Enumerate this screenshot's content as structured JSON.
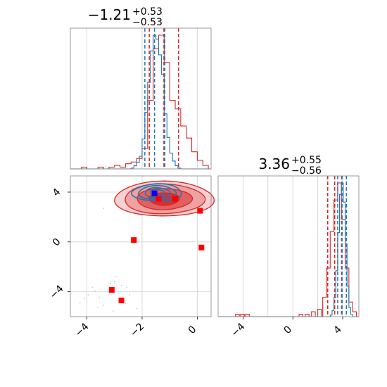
{
  "chart_data": [
    {
      "type": "histogram",
      "panel": "marginal-x",
      "title_value": "−1.21",
      "title_sup": "+0.53",
      "title_sub": "−0.53",
      "xlim": [
        -4.6,
        0.5
      ],
      "grid": true,
      "series": [
        {
          "name": "",
          "color": "#d62728",
          "quantiles": [
            -1.74,
            -1.21,
            -0.68
          ],
          "bins_left": [
            -4.4,
            -4.2,
            -4.0,
            -3.8,
            -3.6,
            -3.4,
            -3.2,
            -3.0,
            -2.8,
            -2.6,
            -2.4,
            -2.2,
            -2.0,
            -1.8,
            -1.6,
            -1.4,
            -1.2,
            -1.0,
            -0.8,
            -0.6,
            -0.4,
            -0.2,
            0.0,
            0.2
          ],
          "bin_width": 0.2,
          "counts": [
            0,
            1,
            0,
            0,
            1,
            0,
            1,
            2,
            1,
            3,
            4,
            6,
            12,
            40,
            70,
            78,
            62,
            40,
            35,
            25,
            18,
            10,
            5,
            2
          ]
        },
        {
          "name": "",
          "color": "#1f77b4",
          "quantiles": [
            -1.9,
            -1.55,
            -1.18
          ],
          "bins_left": [
            -2.4,
            -2.3,
            -2.2,
            -2.1,
            -2.0,
            -1.9,
            -1.8,
            -1.7,
            -1.6,
            -1.5,
            -1.4,
            -1.3,
            -1.2,
            -1.1,
            -1.0,
            -0.9,
            -0.8,
            -0.7
          ],
          "bin_width": 0.1,
          "counts": [
            1,
            4,
            8,
            16,
            38,
            72,
            110,
            150,
            170,
            165,
            145,
            120,
            70,
            40,
            20,
            10,
            4,
            1
          ]
        }
      ]
    },
    {
      "type": "histogram",
      "panel": "marginal-y",
      "title_value": "3.36",
      "title_sup": "+0.55",
      "title_sub": "−0.56",
      "xlim": [
        -6.0,
        5.3
      ],
      "xticks": [
        -4,
        0,
        4
      ],
      "xtick_labels": [
        "−4",
        "0",
        "4"
      ],
      "grid": true,
      "series": [
        {
          "name": "",
          "color": "#d62728",
          "quantiles": [
            2.8,
            3.36,
            3.91
          ],
          "bins_left": [
            -4.6,
            -4.2,
            -3.8,
            0.5,
            1.0,
            1.5,
            2.0,
            2.4,
            2.7,
            3.0,
            3.3,
            3.6,
            3.9,
            4.2,
            4.5,
            4.8
          ],
          "bin_width": 0.3,
          "counts": [
            1,
            1,
            1,
            1,
            1,
            2,
            3,
            8,
            20,
            35,
            48,
            55,
            40,
            20,
            6,
            2
          ]
        },
        {
          "name": "",
          "color": "#1f77b4",
          "quantiles": [
            3.6,
            3.95,
            4.3
          ],
          "bins_left": [
            3.0,
            3.15,
            3.3,
            3.45,
            3.6,
            3.75,
            3.9,
            4.05,
            4.2,
            4.35,
            4.5,
            4.65
          ],
          "bin_width": 0.15,
          "counts": [
            2,
            8,
            25,
            60,
            110,
            160,
            175,
            150,
            95,
            40,
            12,
            3
          ]
        }
      ]
    },
    {
      "type": "scatter",
      "panel": "joint",
      "xlim": [
        -4.6,
        0.5
      ],
      "ylim": [
        -6.0,
        5.3
      ],
      "xticks": [
        -4,
        -2,
        0
      ],
      "xtick_labels": [
        "−4",
        "−2",
        "0"
      ],
      "yticks": [
        -4,
        0,
        4
      ],
      "ytick_labels": [
        "−4",
        "0",
        "4"
      ],
      "grid": true,
      "contours": {
        "red": {
          "color": "#d62728",
          "center": [
            -1.2,
            3.45
          ],
          "radii_x": [
            0.55,
            1.0,
            1.45,
            1.8
          ],
          "radii_y": [
            0.5,
            0.85,
            1.2,
            1.4
          ]
        },
        "blue": {
          "color": "#1f77b4",
          "center": [
            -1.45,
            3.95
          ],
          "radii_x": [
            0.25,
            0.45,
            0.68,
            0.9
          ],
          "radii_y": [
            0.25,
            0.4,
            0.55,
            0.7
          ]
        }
      },
      "markers_red": [
        [
          -2.3,
          0.15
        ],
        [
          -3.1,
          -3.85
        ],
        [
          -2.75,
          -4.7
        ],
        [
          -1.4,
          3.45
        ],
        [
          -0.8,
          3.45
        ],
        [
          0.1,
          2.5
        ],
        [
          0.15,
          -0.45
        ]
      ],
      "marker_red_color": "#ff0000",
      "marker_blue": [
        -1.55,
        3.9
      ],
      "marker_blue_color": "#0000ff",
      "noise_points": [
        [
          -3.0,
          -3.2
        ],
        [
          -2.95,
          -2.8
        ],
        [
          -3.25,
          -4.0
        ],
        [
          -3.55,
          -4.45
        ],
        [
          -3.4,
          -5.1
        ],
        [
          -2.6,
          -4.95
        ],
        [
          -2.45,
          -4.25
        ],
        [
          -2.85,
          -4.15
        ],
        [
          -3.8,
          -3.65
        ],
        [
          -4.25,
          -4.9
        ],
        [
          -2.2,
          -5.35
        ],
        [
          -3.05,
          -5.55
        ],
        [
          -3.6,
          -5.25
        ],
        [
          -2.55,
          -3.65
        ],
        [
          -3.15,
          -3.35
        ],
        [
          -2.75,
          -3.5
        ],
        [
          -3.95,
          -4.25
        ],
        [
          -2.4,
          3.1
        ],
        [
          -2.6,
          3.6
        ],
        [
          -3.0,
          3.2
        ],
        [
          -0.2,
          4.2
        ],
        [
          0.1,
          3.4
        ],
        [
          -2.2,
          4.4
        ],
        [
          -1.9,
          2.3
        ],
        [
          -0.5,
          2.2
        ],
        [
          -3.4,
          2.7
        ],
        [
          -2.8,
          2.9
        ],
        [
          -1.3,
          2.05
        ],
        [
          -0.3,
          4.5
        ],
        [
          -2.45,
          2.55
        ],
        [
          -4.1,
          -4.55
        ],
        [
          -3.7,
          -3.95
        ]
      ]
    }
  ]
}
